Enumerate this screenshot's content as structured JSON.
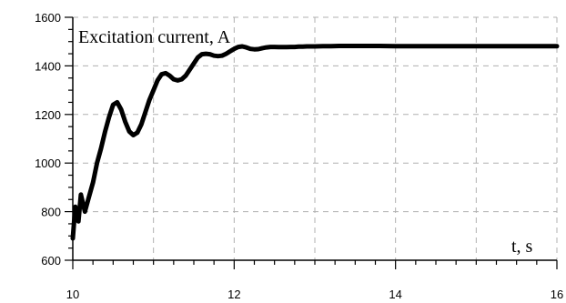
{
  "chart_data": {
    "type": "line",
    "title": "Excitation current, A",
    "xlabel": "t, s",
    "ylabel": "",
    "xlim": [
      10,
      16
    ],
    "ylim": [
      600,
      1600
    ],
    "x_ticks": [
      10,
      12,
      14,
      16
    ],
    "x_tick_labels": [
      "10",
      "12",
      "14",
      "16"
    ],
    "y_ticks": [
      600,
      800,
      1000,
      1200,
      1400,
      1600
    ],
    "y_tick_labels": [
      "600",
      "800",
      "1000",
      "1200",
      "1400",
      "1600"
    ],
    "grid": true,
    "legend": "none",
    "line_color": "#000000",
    "series": [
      {
        "x": [
          10.0,
          10.03,
          10.07,
          10.1,
          10.15,
          10.2,
          10.25,
          10.3,
          10.35,
          10.4,
          10.45,
          10.5,
          10.55,
          10.6,
          10.65,
          10.7,
          10.75,
          10.8,
          10.85,
          10.9,
          10.95,
          11.0,
          11.05,
          11.1,
          11.15,
          11.2,
          11.25,
          11.3,
          11.35,
          11.4,
          11.45,
          11.5,
          11.55,
          11.6,
          11.65,
          11.7,
          11.75,
          11.8,
          11.85,
          11.9,
          11.95,
          12.0,
          12.05,
          12.1,
          12.15,
          12.2,
          12.25,
          12.3,
          12.35,
          12.4,
          12.45,
          12.5,
          12.55,
          12.6,
          12.65,
          12.7,
          12.75,
          12.8,
          12.85,
          12.9,
          12.95,
          13.0,
          13.1,
          13.2,
          13.3,
          13.4,
          13.5,
          13.6,
          13.8,
          14.0,
          14.2,
          14.4,
          14.6,
          14.8,
          15.0,
          15.2,
          15.4,
          15.6,
          15.8,
          16.0
        ],
        "y": [
          690,
          820,
          760,
          870,
          800,
          860,
          920,
          1000,
          1060,
          1130,
          1190,
          1240,
          1250,
          1220,
          1170,
          1130,
          1115,
          1125,
          1160,
          1210,
          1260,
          1300,
          1340,
          1365,
          1370,
          1360,
          1345,
          1340,
          1345,
          1360,
          1385,
          1410,
          1435,
          1448,
          1450,
          1448,
          1442,
          1440,
          1442,
          1450,
          1460,
          1470,
          1478,
          1480,
          1476,
          1470,
          1468,
          1469,
          1473,
          1476,
          1478,
          1478,
          1477,
          1477,
          1477,
          1478,
          1478,
          1479,
          1479,
          1480,
          1480,
          1480,
          1481,
          1481,
          1482,
          1482,
          1482,
          1482,
          1482,
          1481,
          1481,
          1481,
          1481,
          1481,
          1481,
          1481,
          1481,
          1481,
          1481,
          1481
        ]
      }
    ]
  }
}
